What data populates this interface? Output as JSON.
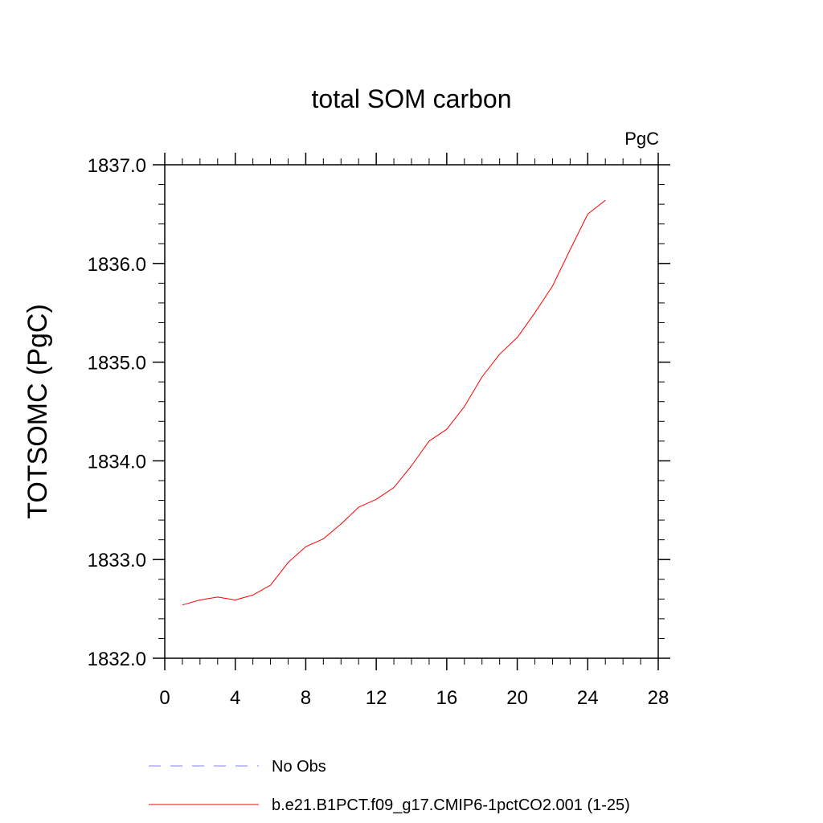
{
  "chart_data": {
    "type": "line",
    "title": "total SOM carbon",
    "units_label": "PgC",
    "ylabel": "TOTSOMC  (PgC)",
    "xlabel": "",
    "xlim": [
      0,
      28
    ],
    "ylim": [
      1832.0,
      1837.0
    ],
    "x_ticks": [
      0,
      4,
      8,
      12,
      16,
      20,
      24,
      28
    ],
    "y_ticks": [
      1832.0,
      1833.0,
      1834.0,
      1835.0,
      1836.0,
      1837.0
    ],
    "x_tick_labels": [
      "0",
      "4",
      "8",
      "12",
      "16",
      "20",
      "24",
      "28"
    ],
    "y_tick_labels": [
      "1832.0",
      "1833.0",
      "1834.0",
      "1835.0",
      "1836.0",
      "1837.0"
    ],
    "grid": false,
    "legend_placement": "bottom",
    "series": [
      {
        "name": "b.e21.B1PCT.f09_g17.CMIP6-1pctCO2.001 (1-25)",
        "color": "#ff0000",
        "style": "solid",
        "x": [
          1,
          2,
          3,
          4,
          5,
          6,
          7,
          8,
          9,
          10,
          11,
          12,
          13,
          14,
          15,
          16,
          17,
          18,
          19,
          20,
          21,
          22,
          23,
          24,
          25
        ],
        "y": [
          1832.54,
          1832.59,
          1832.62,
          1832.59,
          1832.64,
          1832.74,
          1832.97,
          1833.13,
          1833.21,
          1833.36,
          1833.53,
          1833.61,
          1833.73,
          1833.95,
          1834.2,
          1834.32,
          1834.55,
          1834.85,
          1835.08,
          1835.25,
          1835.5,
          1835.77,
          1836.14,
          1836.5,
          1836.64
        ]
      }
    ],
    "legend": [
      {
        "label": "No Obs",
        "color": "#8080ff",
        "style": "dashed"
      },
      {
        "label": "b.e21.B1PCT.f09_g17.CMIP6-1pctCO2.001 (1-25)",
        "color": "#ff0000",
        "style": "solid"
      }
    ]
  }
}
